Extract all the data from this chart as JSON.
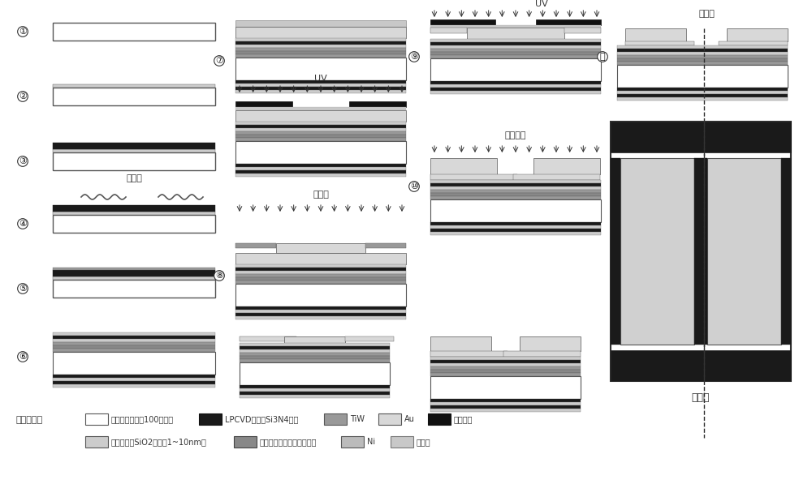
{
  "bg_color": "#ffffff",
  "C_SILICON": "#ffffff",
  "C_SIO2": "#cccccc",
  "C_SI3N4": "#1a1a1a",
  "C_TIW": "#999999",
  "C_AU": "#d8d8d8",
  "C_MASK": "#111111",
  "C_ALN": "#888888",
  "C_NI": "#bbbbbb",
  "C_PHOTORESIST": "#c8c8c8",
  "C_EDGE": "#444444",
  "legend_row1": [
    {
      "label": "低电阵率单晶（100）硬片",
      "fc": "#ffffff",
      "ec": "#555555"
    },
    {
      "label": "LPCVD生长的Si3N4薄膜",
      "fc": "#1a1a1a",
      "ec": "#111111"
    },
    {
      "label": "TiW",
      "fc": "#999999",
      "ec": "#555555"
    },
    {
      "label": "Au",
      "fc": "#d8d8d8",
      "ec": "#555555"
    },
    {
      "label": "光刻掩膜",
      "fc": "#111111",
      "ec": "#111111"
    }
  ],
  "legend_row2": [
    {
      "label": "热氧化生长SiO2薄膜（1~10nm）",
      "fc": "#cccccc",
      "ec": "#555555"
    },
    {
      "label": "磁控溅射法制备氮化铝薄膜",
      "fc": "#888888",
      "ec": "#444444"
    },
    {
      "label": "Ni",
      "fc": "#bbbbbb",
      "ec": "#555555"
    },
    {
      "label": "光刻胶",
      "fc": "#c8c8c8",
      "ec": "#777777"
    }
  ]
}
